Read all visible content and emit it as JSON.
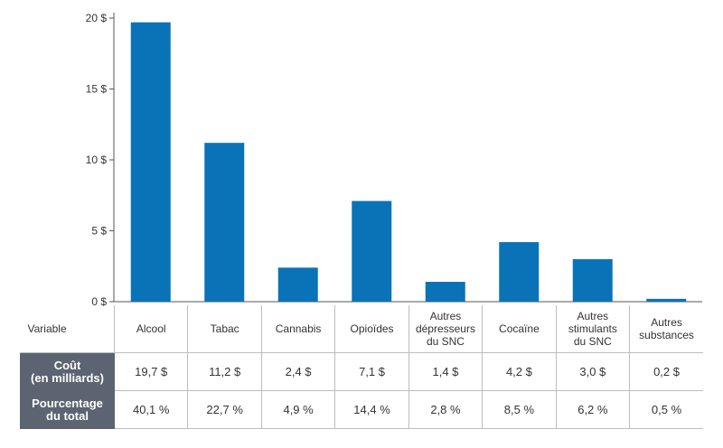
{
  "chart_data": {
    "type": "bar",
    "categories": [
      "Alcool",
      "Tabac",
      "Cannabis",
      "Opioïdes",
      "Autres\ndépresseurs\ndu SNC",
      "Cocaïne",
      "Autres\nstimulants\ndu SNC",
      "Autres\nsubstances"
    ],
    "values": [
      19.7,
      11.2,
      2.4,
      7.1,
      1.4,
      4.2,
      3.0,
      0.2
    ],
    "ylim": [
      0,
      20
    ],
    "yticks": [
      0,
      5,
      10,
      15,
      20
    ],
    "ytick_labels": [
      "0 $",
      "5 $",
      "10 $",
      "15 $",
      "20 $"
    ],
    "bar_color": "#0a73b7",
    "grid": false
  },
  "table": {
    "header_label": "Variable",
    "rows": [
      {
        "label": "Coût\n(en milliards)",
        "values": [
          "19,7 $",
          "11,2 $",
          "2,4 $",
          "7,1 $",
          "1,4 $",
          "4,2 $",
          "3,0 $",
          "0,2 $"
        ]
      },
      {
        "label": "Pourcentage\ndu total",
        "values": [
          "40,1 %",
          "22,7 %",
          "4,9 %",
          "14,4 %",
          "2,8 %",
          "8,5 %",
          "6,2 %",
          "0,5 %"
        ]
      }
    ],
    "row_header_color": "#5b6470"
  }
}
